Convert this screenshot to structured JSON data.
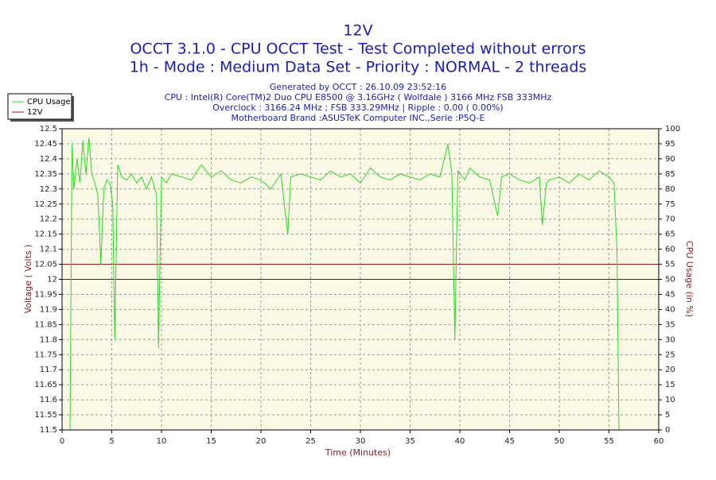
{
  "chart_data": {
    "type": "line",
    "title": "12V",
    "subtitle": [
      "OCCT 3.1.0 - CPU OCCT Test - Test Completed without errors",
      "1h - Mode : Medium Data Set - Priority : NORMAL - 2 threads"
    ],
    "info": [
      "Generated by OCCT : 26.10.09 23:52:16",
      "CPU : Intel(R) Core(TM)2 Duo CPU E8500 @ 3.16GHz ( Wolfdale ) 3166 MHz FSB 333MHz",
      "Overclock : 3166.24 MHz ; FSB 333.29MHz | Ripple : 0.00 ( 0.00%)",
      "Motherboard Brand :ASUSTeK Computer INC.,Serie :P5Q-E"
    ],
    "xlabel": "Time (Minutes)",
    "ylabel": "Voltage ( Volts )",
    "y2label": "CPU Usage (in %)",
    "xlim": [
      0,
      60
    ],
    "xticks": [
      0,
      5,
      10,
      15,
      20,
      25,
      30,
      35,
      40,
      45,
      50,
      55,
      60
    ],
    "ylim": [
      11.5,
      12.5
    ],
    "yticks": [
      11.5,
      11.55,
      11.6,
      11.65,
      11.7,
      11.75,
      11.8,
      11.85,
      11.9,
      11.95,
      12,
      12.05,
      12.1,
      12.15,
      12.2,
      12.25,
      12.3,
      12.35,
      12.4,
      12.45,
      12.5
    ],
    "y2lim": [
      0,
      100
    ],
    "y2ticks": [
      0,
      5,
      10,
      15,
      20,
      25,
      30,
      35,
      40,
      45,
      50,
      55,
      60,
      65,
      70,
      75,
      80,
      85,
      90,
      95,
      100
    ],
    "grid": true,
    "legend": "top-left",
    "reference_line": {
      "value": 12,
      "color": "#1c1cb0"
    },
    "series": [
      {
        "name": "CPU Usage",
        "color": "#22dd22",
        "axis": "y2",
        "x": [
          0.8,
          1.0,
          1.2,
          1.5,
          1.8,
          2.1,
          2.4,
          2.7,
          3.0,
          3.3,
          3.6,
          3.9,
          4.2,
          4.5,
          4.8,
          5.1,
          5.3,
          5.6,
          6,
          6.5,
          7,
          7.5,
          8,
          8.5,
          9,
          9.5,
          9.7,
          10,
          10.5,
          11,
          12,
          13,
          14,
          15,
          16,
          17,
          18,
          19,
          20,
          21,
          22,
          22.7,
          23,
          24,
          25,
          26,
          27,
          28,
          29,
          30,
          31,
          32,
          33,
          34,
          35,
          36,
          37,
          38,
          38.8,
          39.2,
          39.5,
          39.8,
          40.5,
          41,
          42,
          43,
          43.8,
          44.2,
          45,
          46,
          47,
          48,
          48.3,
          48.7,
          49,
          50,
          51,
          52,
          53,
          54,
          55,
          55.5,
          55.8,
          56.0
        ],
        "values": [
          0,
          95,
          80,
          90,
          82,
          96,
          85,
          97,
          85,
          82,
          78,
          55,
          80,
          83,
          82,
          75,
          30,
          88,
          84,
          83,
          85,
          82,
          84,
          80,
          84,
          78,
          27,
          84,
          82,
          85,
          84,
          83,
          88,
          84,
          86,
          83,
          82,
          84,
          83,
          80,
          85,
          65,
          84,
          85,
          84,
          83,
          86,
          84,
          85,
          82,
          87,
          84,
          83,
          85,
          84,
          83,
          85,
          84,
          95,
          85,
          30,
          86,
          83,
          87,
          84,
          83,
          71,
          84,
          85,
          83,
          82,
          84,
          68,
          82,
          83,
          84,
          82,
          85,
          83,
          86,
          84,
          82,
          60,
          0
        ]
      },
      {
        "name": "12V",
        "color": "#8b1a1a",
        "x": [
          0,
          60
        ],
        "values": [
          12.05,
          12.05
        ]
      }
    ]
  }
}
